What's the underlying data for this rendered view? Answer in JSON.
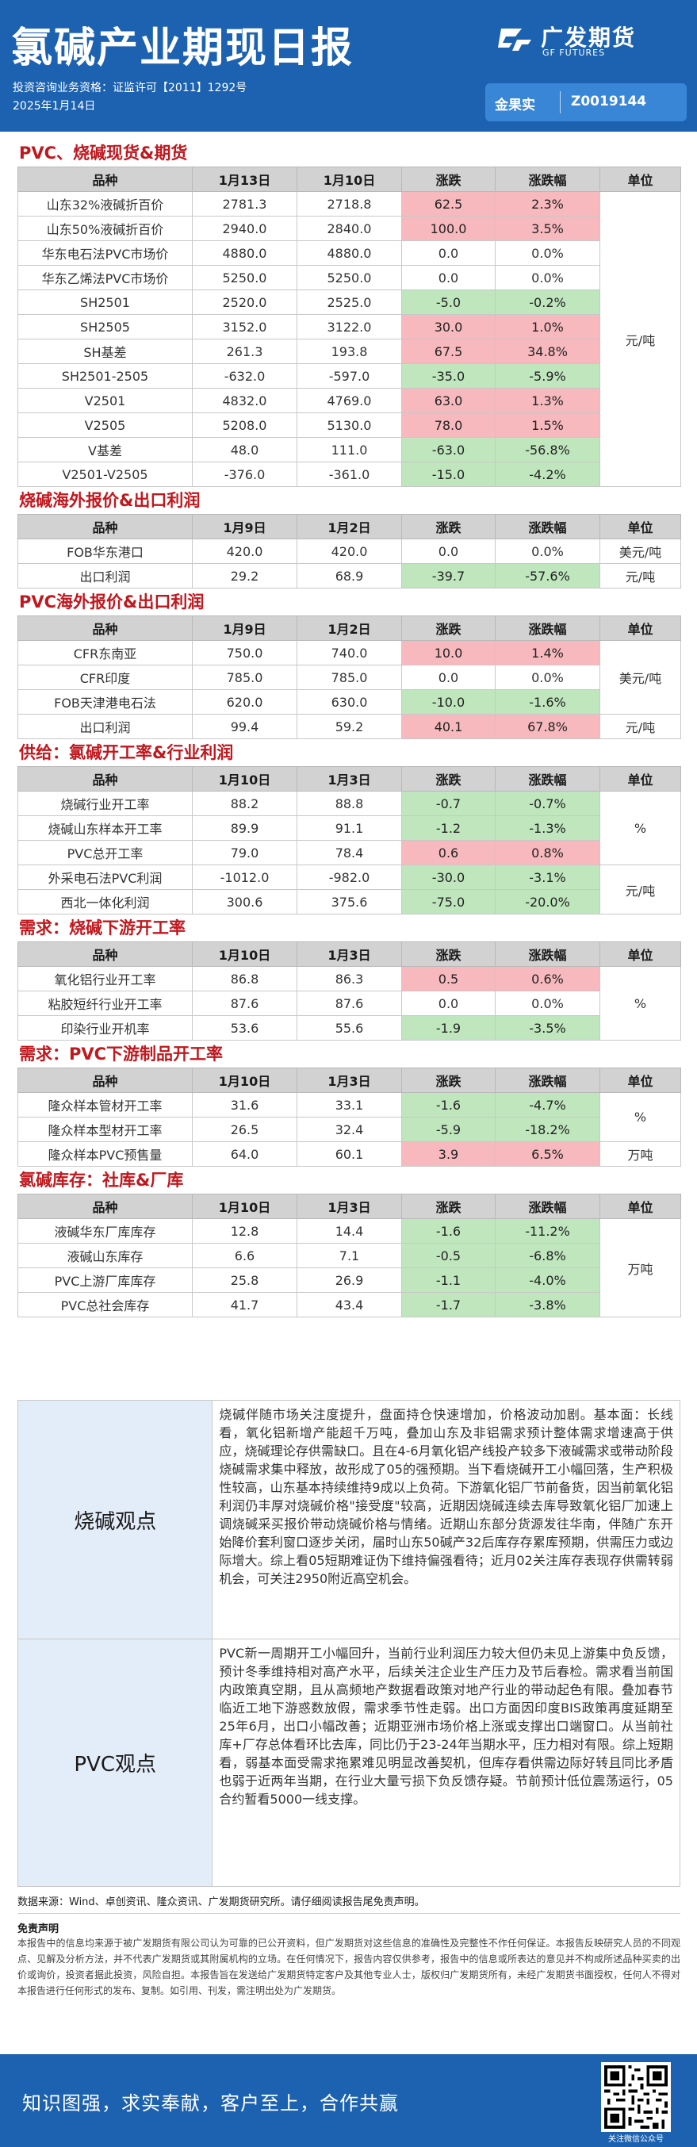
{
  "header": {
    "title": "氯碱产业期现日报",
    "qualification": "投资咨询业务资格：证监许可【2011】1292号",
    "date": "2025年1月14日",
    "logo_cn": "广发期货",
    "logo_en": "GF FUTURES",
    "cert_label": "金果实",
    "cert_id": "Z0019144"
  },
  "tables": [
    {
      "title": "PVC、烧碱现货&期货",
      "headers": [
        "品种",
        "1月13日",
        "1月10日",
        "涨跌",
        "涨跌幅",
        "单位"
      ],
      "unit": "元/吨",
      "rows": [
        {
          "name": "山东32%液碱折百价",
          "a": "2781.3",
          "b": "2718.8",
          "chg": "62.5",
          "pct": "2.3%",
          "dir": "up"
        },
        {
          "name": "山东50%液碱折百价",
          "a": "2940.0",
          "b": "2840.0",
          "chg": "100.0",
          "pct": "3.5%",
          "dir": "up"
        },
        {
          "name": "华东电石法PVC市场价",
          "a": "4880.0",
          "b": "4880.0",
          "chg": "0.0",
          "pct": "0.0%",
          "dir": "flat"
        },
        {
          "name": "华东乙烯法PVC市场价",
          "a": "5250.0",
          "b": "5250.0",
          "chg": "0.0",
          "pct": "0.0%",
          "dir": "flat"
        },
        {
          "name": "SH2501",
          "a": "2520.0",
          "b": "2525.0",
          "chg": "-5.0",
          "pct": "-0.2%",
          "dir": "down"
        },
        {
          "name": "SH2505",
          "a": "3152.0",
          "b": "3122.0",
          "chg": "30.0",
          "pct": "1.0%",
          "dir": "up"
        },
        {
          "name": "SH基差",
          "a": "261.3",
          "b": "193.8",
          "chg": "67.5",
          "pct": "34.8%",
          "dir": "up"
        },
        {
          "name": "SH2501-2505",
          "a": "-632.0",
          "b": "-597.0",
          "chg": "-35.0",
          "pct": "-5.9%",
          "dir": "down"
        },
        {
          "name": "V2501",
          "a": "4832.0",
          "b": "4769.0",
          "chg": "63.0",
          "pct": "1.3%",
          "dir": "up"
        },
        {
          "name": "V2505",
          "a": "5208.0",
          "b": "5130.0",
          "chg": "78.0",
          "pct": "1.5%",
          "dir": "up"
        },
        {
          "name": "V基差",
          "a": "48.0",
          "b": "111.0",
          "chg": "-63.0",
          "pct": "-56.8%",
          "dir": "down"
        },
        {
          "name": "V2501-V2505",
          "a": "-376.0",
          "b": "-361.0",
          "chg": "-15.0",
          "pct": "-4.2%",
          "dir": "down"
        }
      ]
    },
    {
      "title": "烧碱海外报价&出口利润",
      "headers": [
        "品种",
        "1月9日",
        "1月2日",
        "涨跌",
        "涨跌幅",
        "单位"
      ],
      "units": [
        "美元/吨",
        "元/吨"
      ],
      "rows": [
        {
          "name": "FOB华东港口",
          "a": "420.0",
          "b": "420.0",
          "chg": "0.0",
          "pct": "0.0%",
          "dir": "flat"
        },
        {
          "name": "出口利润",
          "a": "29.2",
          "b": "68.9",
          "chg": "-39.7",
          "pct": "-57.6%",
          "dir": "down"
        }
      ]
    },
    {
      "title": "PVC海外报价&出口利润",
      "headers": [
        "品种",
        "1月9日",
        "1月2日",
        "涨跌",
        "涨跌幅",
        "单位"
      ],
      "units": [
        "美元/吨",
        "元/吨"
      ],
      "rows": [
        {
          "name": "CFR东南亚",
          "a": "750.0",
          "b": "740.0",
          "chg": "10.0",
          "pct": "1.4%",
          "dir": "up"
        },
        {
          "name": "CFR印度",
          "a": "785.0",
          "b": "785.0",
          "chg": "0.0",
          "pct": "0.0%",
          "dir": "flat"
        },
        {
          "name": "FOB天津港电石法",
          "a": "620.0",
          "b": "630.0",
          "chg": "-10.0",
          "pct": "-1.6%",
          "dir": "down"
        },
        {
          "name": "出口利润",
          "a": "99.4",
          "b": "59.2",
          "chg": "40.1",
          "pct": "67.8%",
          "dir": "up"
        }
      ]
    },
    {
      "title": "供给：氯碱开工率&行业利润",
      "headers": [
        "品种",
        "1月10日",
        "1月3日",
        "涨跌",
        "涨跌幅",
        "单位"
      ],
      "units": [
        "%",
        "元/吨"
      ],
      "rows": [
        {
          "name": "烧碱行业开工率",
          "a": "88.2",
          "b": "88.8",
          "chg": "-0.7",
          "pct": "-0.7%",
          "dir": "down"
        },
        {
          "name": "烧碱山东样本开工率",
          "a": "89.9",
          "b": "91.1",
          "chg": "-1.2",
          "pct": "-1.3%",
          "dir": "down"
        },
        {
          "name": "PVC总开工率",
          "a": "79.0",
          "b": "78.4",
          "chg": "0.6",
          "pct": "0.8%",
          "dir": "up"
        },
        {
          "name": "外采电石法PVC利润",
          "a": "-1012.0",
          "b": "-982.0",
          "chg": "-30.0",
          "pct": "-3.1%",
          "dir": "down"
        },
        {
          "name": "西北一体化利润",
          "a": "300.6",
          "b": "375.6",
          "chg": "-75.0",
          "pct": "-20.0%",
          "dir": "down"
        }
      ]
    },
    {
      "title": "需求：烧碱下游开工率",
      "headers": [
        "品种",
        "1月10日",
        "1月3日",
        "涨跌",
        "涨跌幅",
        "单位"
      ],
      "unit": "%",
      "rows": [
        {
          "name": "氧化铝行业开工率",
          "a": "86.8",
          "b": "86.3",
          "chg": "0.5",
          "pct": "0.6%",
          "dir": "up"
        },
        {
          "name": "粘胶短纤行业开工率",
          "a": "87.6",
          "b": "87.6",
          "chg": "0.0",
          "pct": "0.0%",
          "dir": "flat"
        },
        {
          "name": "印染行业开机率",
          "a": "53.6",
          "b": "55.6",
          "chg": "-1.9",
          "pct": "-3.5%",
          "dir": "down"
        }
      ]
    },
    {
      "title": "需求：PVC下游制品开工率",
      "headers": [
        "品种",
        "1月10日",
        "1月3日",
        "涨跌",
        "涨跌幅",
        "单位"
      ],
      "units": [
        "%",
        "万吨"
      ],
      "rows": [
        {
          "name": "隆众样本管材开工率",
          "a": "31.6",
          "b": "33.1",
          "chg": "-1.6",
          "pct": "-4.7%",
          "dir": "down"
        },
        {
          "name": "隆众样本型材开工率",
          "a": "26.5",
          "b": "32.4",
          "chg": "-5.9",
          "pct": "-18.2%",
          "dir": "down"
        },
        {
          "name": "隆众样本PVC预售量",
          "a": "64.0",
          "b": "60.1",
          "chg": "3.9",
          "pct": "6.5%",
          "dir": "up"
        }
      ]
    },
    {
      "title": "氯碱库存：社库&厂库",
      "headers": [
        "品种",
        "1月10日",
        "1月3日",
        "涨跌",
        "涨跌幅",
        "单位"
      ],
      "unit": "万吨",
      "rows": [
        {
          "name": "液碱华东厂库库存",
          "a": "12.8",
          "b": "14.4",
          "chg": "-1.6",
          "pct": "-11.2%",
          "dir": "down"
        },
        {
          "name": "液碱山东库存",
          "a": "6.6",
          "b": "7.1",
          "chg": "-0.5",
          "pct": "-6.8%",
          "dir": "down"
        },
        {
          "name": "PVC上游厂库库存",
          "a": "25.8",
          "b": "26.9",
          "chg": "-1.1",
          "pct": "-4.0%",
          "dir": "down"
        },
        {
          "name": "PVC总社会库存",
          "a": "41.7",
          "b": "43.4",
          "chg": "-1.7",
          "pct": "-3.8%",
          "dir": "down"
        }
      ]
    }
  ],
  "views": [
    {
      "label": "烧碱观点",
      "text": "烧碱伴随市场关注度提升，盘面持仓快速增加，价格波动加剧。基本面：长线看，氧化铝新增产能超千万吨，叠加山东及非铝需求预计整体需求增速高于供应，烧碱理论存供需缺口。且在4-6月氧化铝产线投产较多下液碱需求或带动阶段烧碱需求集中释放，故形成了05的强预期。当下看烧碱开工小幅回落，生产积极性较高，山东基本持续维持9成以上负荷。下游氧化铝厂节前备货，因当前氧化铝利润仍丰厚对烧碱价格\"接受度\"较高，近期因烧碱连续去库导致氧化铝厂加速上调烧碱采买报价带动烧碱价格与情绪。近期山东部分货源发往华南，伴随广东开始降价套利窗口逐步关闭，届时山东50碱产32后库存存累库预期，供需压力或边际增大。综上看05短期难证伪下维持偏强看待；近月02关注库存表现存供需转弱机会，可关注2950附近高空机会。"
    },
    {
      "label": "PVC观点",
      "text": "PVC新一周期开工小幅回升，当前行业利润压力较大但仍未见上游集中负反馈，预计冬季维持相对高产水平，后续关注企业生产压力及节后春检。需求看当前国内政策真空期，且从高频地产数据看政策对地产行业的带动起色有限。叠加春节临近工地下游惑数放假，需求季节性走弱。出口方面因印度BIS政策再度延期至25年6月，出口小幅改善；近期亚洲市场价格上涨或支撑出口端窗口。从当前社库+厂存总体看环比去库，同比仍于23-24年当期水平，压力相对有限。综上短期看，弱基本面受需求拖累难见明显改善契机，但库存看供需边际好转且同比矛盾也弱于近两年当期，在行业大量亏损下负反馈存疑。节前预计低位震荡运行，05合约暂看5000一线支撑。"
    }
  ],
  "footer": {
    "source": "数据来源：Wind、卓创资讯、隆众资讯、广发期货研究所。请仔细阅读报告尾免责声明。",
    "disclaimer_title": "免责声明",
    "disclaimer": "本报告中的信息均来源于被广发期货有限公司认为可靠的已公开资料，但广发期货对这些信息的准确性及完整性不作任何保证。本报告反映研究人员的不同观点、见解及分析方法，并不代表广发期货或其附属机构的立场。在任何情况下，报告内容仅供参考，报告中的信息或所表达的意见并不构成所述品种买卖的出价或询价，投资者据此投资，风险自担。本报告旨在发送给广发期货特定客户及其他专业人士，版权归广发期货所有，未经广发期货书面授权，任何人不得对本报告进行任何形式的发布、复制。如引用、刊发，需注明出处为广发期货。",
    "slogan": "知识图强，求实奉献，客户至上，合作共赢",
    "qr_caption": "关注微信公众号"
  },
  "colors": {
    "up": "#f7b9bd",
    "down": "#bfe6bd",
    "brand": "#1c62b0",
    "section_title": "#c0181e"
  }
}
